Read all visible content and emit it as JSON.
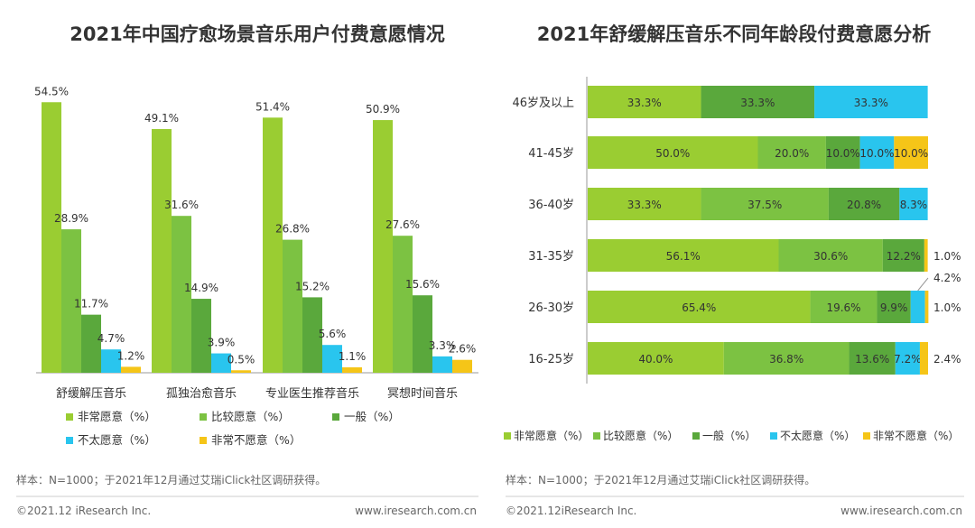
{
  "colors": {
    "very_willing": "#9acd32",
    "fairly_willing": "#7cc242",
    "neutral": "#5aa83c",
    "not_very_willing": "#29c5ee",
    "very_unwilling": "#f5c518",
    "text": "#333333",
    "axis": "#999999",
    "footer_line": "#cccccc"
  },
  "chart_data": [
    {
      "type": "bar",
      "title": "2021年中国疗愈场景音乐用户付费意愿情况",
      "categories": [
        "舒缓解压音乐",
        "孤独治愈音乐",
        "专业医生推荐音乐",
        "冥想时间音乐"
      ],
      "series": [
        {
          "name": "非常愿意（%）",
          "values": [
            54.5,
            49.1,
            51.4,
            50.9
          ]
        },
        {
          "name": "比较愿意（%）",
          "values": [
            28.9,
            31.6,
            26.8,
            27.6
          ]
        },
        {
          "name": "一般（%）",
          "values": [
            11.7,
            14.9,
            15.2,
            15.6
          ]
        },
        {
          "name": "不太愿意（%）",
          "values": [
            4.7,
            3.9,
            5.6,
            3.3
          ]
        },
        {
          "name": "非常不愿意（%）",
          "values": [
            1.2,
            0.5,
            1.1,
            2.6
          ]
        }
      ],
      "value_labels": [
        [
          "54.5%",
          "49.1%",
          "51.4%",
          "50.9%"
        ],
        [
          "28.9%",
          "31.6%",
          "26.8%",
          "27.6%"
        ],
        [
          "11.7%",
          "14.9%",
          "15.2%",
          "15.6%"
        ],
        [
          "4.7%",
          "3.9%",
          "5.6%",
          "3.3%"
        ],
        [
          "1.2%",
          "0.5%",
          "1.1%",
          "2.6%"
        ]
      ],
      "ylim": [
        0,
        60
      ],
      "xlabel": "",
      "ylabel": "",
      "grid": false,
      "legend_placement": "bottom",
      "note": "样本：N=1000；于2021年12月通过艾瑞iClick社区调研获得。",
      "copyright": "©2021.12 iResearch Inc.",
      "website": "www.iresearch.com.cn"
    },
    {
      "type": "stacked-bar-horizontal",
      "title": "2021年舒缓解压音乐不同年龄段付费意愿分析",
      "categories": [
        "46岁及以上",
        "41-45岁",
        "36-40岁",
        "31-35岁",
        "26-30岁",
        "16-25岁"
      ],
      "series": [
        {
          "name": "非常愿意（%）",
          "values": [
            33.3,
            50.0,
            33.3,
            56.1,
            65.4,
            40.0
          ]
        },
        {
          "name": "比较愿意（%）",
          "values": [
            0,
            20.0,
            37.5,
            30.6,
            19.6,
            36.8
          ]
        },
        {
          "name": "一般（%）",
          "values": [
            33.3,
            10.0,
            20.8,
            12.2,
            9.9,
            13.6
          ]
        },
        {
          "name": "不太愿意（%）",
          "values": [
            33.3,
            10.0,
            8.3,
            0,
            4.2,
            7.2
          ]
        },
        {
          "name": "非常不愿意（%）",
          "values": [
            0,
            10.0,
            0,
            1.0,
            1.0,
            2.4
          ]
        }
      ],
      "value_labels": [
        [
          "33.3%",
          "50.0%",
          "33.3%",
          "56.1%",
          "65.4%",
          "40.0%"
        ],
        [
          "",
          "20.0%",
          "37.5%",
          "30.6%",
          "19.6%",
          "36.8%"
        ],
        [
          "33.3%",
          "10.0%",
          "20.8%",
          "12.2%",
          "9.9%",
          "13.6%"
        ],
        [
          "33.3%",
          "10.0%",
          "8.3%",
          "",
          "4.2%",
          "7.2%"
        ],
        [
          "",
          "10.0%",
          "",
          "1.0%",
          "1.0%",
          "2.4%"
        ]
      ],
      "xlim": [
        0,
        100
      ],
      "xlabel": "",
      "ylabel": "",
      "grid": false,
      "legend_placement": "bottom",
      "note": "样本：N=1000；于2021年12月通过艾瑞iClick社区调研获得。",
      "copyright": "©2021.12iResearch Inc.",
      "website": "www.iresearch.com.cn"
    }
  ]
}
